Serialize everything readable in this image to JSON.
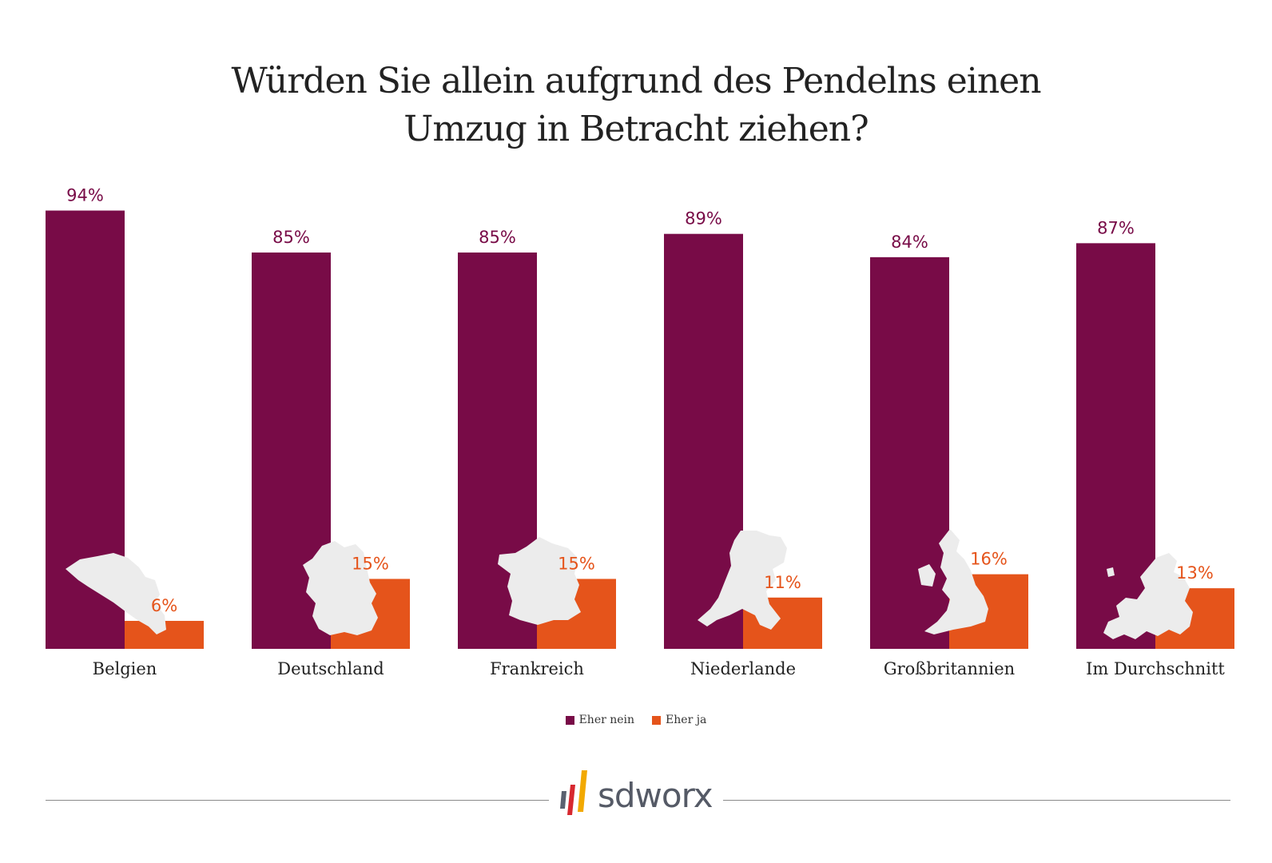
{
  "title_line1": "Würden Sie allein aufgrund des Pendelns einen",
  "title_line2": "Umzug in Betracht ziehen?",
  "colors": {
    "nein": "#780b47",
    "ja": "#e5541b",
    "map": "#ececec"
  },
  "chart_data": {
    "type": "bar",
    "categories": [
      "Belgien",
      "Deutschland",
      "Frankreich",
      "Niederlande",
      "Großbritannien",
      "Im Durchschnitt"
    ],
    "series": [
      {
        "name": "Eher nein",
        "values": [
          94,
          85,
          85,
          89,
          84,
          87
        ],
        "labels": [
          "94%",
          "85%",
          "85%",
          "89%",
          "84%",
          "87%"
        ]
      },
      {
        "name": "Eher ja",
        "values": [
          6,
          15,
          15,
          11,
          16,
          13
        ],
        "labels": [
          "6%",
          "15%",
          "15%",
          "11%",
          "16%",
          "13%"
        ]
      }
    ],
    "ylim": [
      0,
      100
    ],
    "grid": false,
    "legend": "bottom-center",
    "map_icons": [
      "belgium-map-icon",
      "germany-map-icon",
      "france-map-icon",
      "netherlands-map-icon",
      "great-britain-map-icon",
      "europe-map-icon"
    ]
  },
  "legend": {
    "nein": "Eher nein",
    "ja": "Eher ja"
  },
  "logo_text": "sdworx"
}
